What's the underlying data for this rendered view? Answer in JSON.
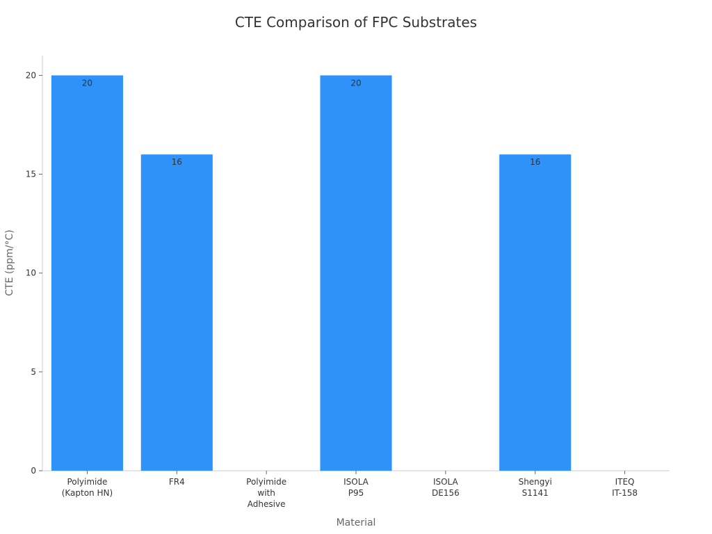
{
  "chart_data": {
    "type": "bar",
    "title": "CTE Comparison of FPC Substrates",
    "xlabel": "Material",
    "ylabel": "CTE (ppm/°C)",
    "categories": [
      [
        "Polyimide",
        "(Kapton HN)"
      ],
      [
        "FR4"
      ],
      [
        "Polyimide",
        "with",
        "Adhesive"
      ],
      [
        "ISOLA",
        "P95"
      ],
      [
        "ISOLA",
        "DE156"
      ],
      [
        "Shengyi",
        "S1141"
      ],
      [
        "ITEQ",
        "IT-158"
      ]
    ],
    "values": [
      20,
      16,
      null,
      20,
      null,
      16,
      null
    ],
    "data_labels": [
      "20",
      "16",
      "",
      "20",
      "",
      "16",
      ""
    ],
    "ylim": [
      0,
      21
    ],
    "yticks": [
      0,
      5,
      10,
      15,
      20
    ],
    "grid": false,
    "bar_color": "#2e92fa",
    "axis_color": "#cccccc"
  }
}
